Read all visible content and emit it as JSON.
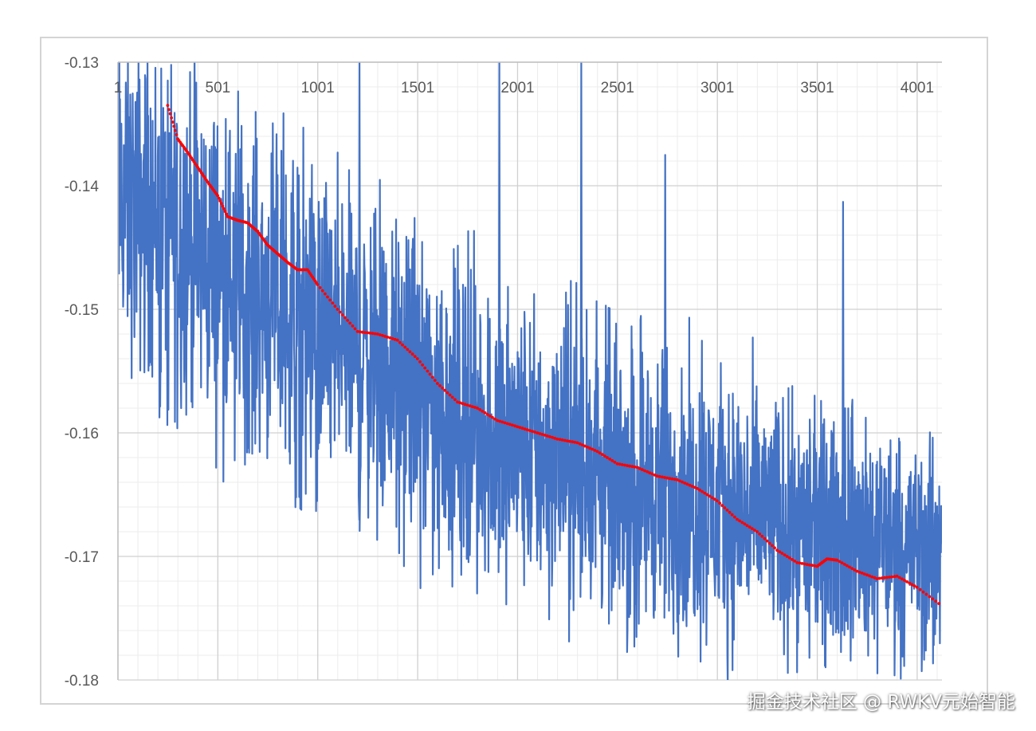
{
  "chart_data": {
    "type": "line",
    "title": "",
    "xlabel": "",
    "ylabel": "",
    "xlim": [
      1,
      4125
    ],
    "ylim": [
      -0.18,
      -0.13
    ],
    "y_ticks": [
      -0.13,
      -0.14,
      -0.15,
      -0.16,
      -0.17,
      -0.18
    ],
    "y_tick_labels": [
      "-0.13",
      "-0.14",
      "-0.15",
      "-0.16",
      "-0.17",
      "-0.18"
    ],
    "x_ticks": [
      1,
      501,
      1001,
      1501,
      2001,
      2501,
      3001,
      3501,
      4001
    ],
    "x_tick_labels": [
      "1",
      "501",
      "1001",
      "1501",
      "2001",
      "2501",
      "3001",
      "3501",
      "4001"
    ],
    "x_axis_position": "top (crosses at y = -0.13)",
    "grid": true,
    "legend": "none",
    "series": [
      {
        "style": "noisy line (per-step value)",
        "color": "#4472C4",
        "envelope_x": [
          1,
          250,
          500,
          1000,
          1500,
          2000,
          2500,
          3000,
          3500,
          4000,
          4125
        ],
        "upper_envelope": [
          -0.125,
          -0.126,
          -0.13,
          -0.136,
          -0.141,
          -0.146,
          -0.149,
          -0.152,
          -0.156,
          -0.158,
          -0.16
        ],
        "lower_envelope": [
          -0.157,
          -0.16,
          -0.163,
          -0.167,
          -0.172,
          -0.176,
          -0.178,
          -0.18,
          -0.18,
          -0.18,
          -0.18
        ],
        "spikes_up_x": [
          1210,
          1910,
          2320,
          2740,
          3630
        ],
        "spikes_up_y": [
          -0.13,
          -0.13,
          -0.13,
          -0.1375,
          -0.1413
        ]
      },
      {
        "style": "dotted line (smoothed)",
        "color": "#FF0000",
        "x": [
          250,
          300,
          350,
          400,
          450,
          500,
          550,
          600,
          650,
          700,
          750,
          800,
          850,
          900,
          950,
          1000,
          1100,
          1200,
          1300,
          1400,
          1500,
          1600,
          1700,
          1800,
          1900,
          2000,
          2100,
          2200,
          2300,
          2400,
          2500,
          2600,
          2700,
          2800,
          2900,
          3000,
          3100,
          3200,
          3300,
          3400,
          3500,
          3550,
          3600,
          3700,
          3800,
          3900,
          4000,
          4125
        ],
        "y": [
          -0.1335,
          -0.1362,
          -0.1373,
          -0.1385,
          -0.1397,
          -0.1408,
          -0.1425,
          -0.1428,
          -0.143,
          -0.1437,
          -0.1448,
          -0.1455,
          -0.1462,
          -0.1468,
          -0.1468,
          -0.148,
          -0.15,
          -0.1518,
          -0.152,
          -0.1525,
          -0.154,
          -0.156,
          -0.1575,
          -0.158,
          -0.159,
          -0.1595,
          -0.16,
          -0.1605,
          -0.1608,
          -0.1615,
          -0.1625,
          -0.1628,
          -0.1635,
          -0.1638,
          -0.1645,
          -0.1655,
          -0.167,
          -0.168,
          -0.1695,
          -0.1705,
          -0.1708,
          -0.1702,
          -0.1703,
          -0.1712,
          -0.1718,
          -0.1716,
          -0.1725,
          -0.174
        ]
      }
    ]
  },
  "watermark": "掘金技术社区 @ RWKV元始智能"
}
